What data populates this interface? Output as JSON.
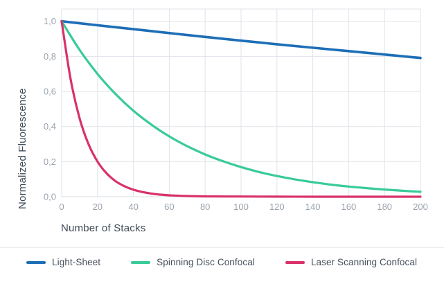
{
  "chart_data": {
    "type": "line",
    "title": "",
    "xlabel": "Number of Stacks",
    "ylabel": "Normalized Fluorescence",
    "xlim": [
      0,
      200
    ],
    "ylim": [
      0,
      1.07
    ],
    "grid": true,
    "legend_position": "bottom",
    "x_ticks": [
      0,
      20,
      40,
      60,
      80,
      100,
      120,
      140,
      160,
      180,
      200
    ],
    "x_tick_labels": [
      "0",
      "20",
      "40",
      "60",
      "80",
      "100",
      "120",
      "140",
      "160",
      "180",
      "200"
    ],
    "y_ticks": [
      0,
      0.2,
      0.4,
      0.6,
      0.8,
      1.0
    ],
    "y_tick_labels": [
      "0,0",
      "0,2",
      "0,4",
      "0,6",
      "0,8",
      "1,0"
    ],
    "series": [
      {
        "name": "Light-Sheet",
        "color": "#1d6eb7",
        "points": [
          [
            0,
            1.0
          ],
          [
            40,
            0.955
          ],
          [
            80,
            0.911
          ],
          [
            120,
            0.869
          ],
          [
            160,
            0.83
          ],
          [
            200,
            0.791
          ]
        ]
      },
      {
        "name": "Spinning Disc Confocal",
        "color": "#38cb98",
        "points": [
          [
            0,
            1.0
          ],
          [
            10,
            0.837
          ],
          [
            20,
            0.7
          ],
          [
            30,
            0.586
          ],
          [
            40,
            0.49
          ],
          [
            50,
            0.411
          ],
          [
            60,
            0.344
          ],
          [
            70,
            0.288
          ],
          [
            80,
            0.241
          ],
          [
            90,
            0.202
          ],
          [
            100,
            0.169
          ],
          [
            110,
            0.141
          ],
          [
            120,
            0.118
          ],
          [
            130,
            0.099
          ],
          [
            140,
            0.083
          ],
          [
            150,
            0.069
          ],
          [
            160,
            0.058
          ],
          [
            170,
            0.049
          ],
          [
            180,
            0.041
          ],
          [
            190,
            0.034
          ],
          [
            200,
            0.028
          ]
        ]
      },
      {
        "name": "Laser Scanning Confocal",
        "color": "#d93168",
        "points": [
          [
            0,
            1.0
          ],
          [
            5,
            0.669
          ],
          [
            10,
            0.447
          ],
          [
            15,
            0.299
          ],
          [
            20,
            0.2
          ],
          [
            25,
            0.134
          ],
          [
            30,
            0.089
          ],
          [
            35,
            0.06
          ],
          [
            40,
            0.04
          ],
          [
            45,
            0.027
          ],
          [
            50,
            0.018
          ],
          [
            55,
            0.012
          ],
          [
            60,
            0.008
          ],
          [
            70,
            0.004
          ],
          [
            80,
            0.002
          ],
          [
            100,
            0.001
          ],
          [
            120,
            0.0005
          ],
          [
            140,
            0
          ],
          [
            160,
            0
          ],
          [
            180,
            0
          ],
          [
            200,
            0
          ]
        ]
      }
    ]
  },
  "colors": {
    "background": "#ffffff",
    "grid": "#dfe3e9",
    "axis_line": "#d7dce3",
    "tick_text": "#9aa3ad",
    "axis_title_text": "#3e4a56",
    "legend_text": "#45505c",
    "divider": "#e8ebee"
  }
}
